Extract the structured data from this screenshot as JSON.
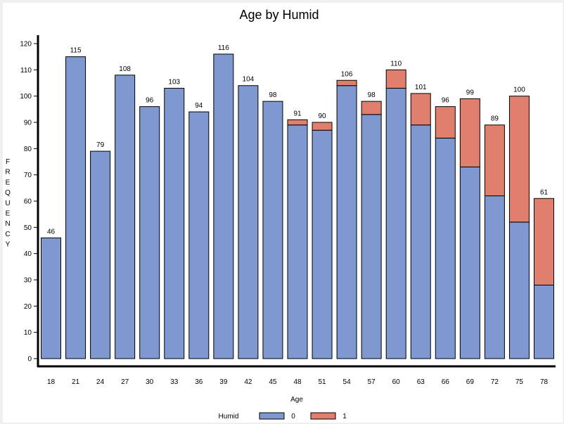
{
  "chart_data": {
    "type": "bar",
    "stacked": true,
    "title": "Age by Humid",
    "xlabel": "Age",
    "ylabel": "FREQUENCY",
    "ylim": [
      0,
      120
    ],
    "yticks": [
      0,
      10,
      20,
      30,
      40,
      50,
      60,
      70,
      80,
      90,
      100,
      110,
      120
    ],
    "categories": [
      "18",
      "21",
      "24",
      "27",
      "30",
      "33",
      "36",
      "39",
      "42",
      "45",
      "48",
      "51",
      "54",
      "57",
      "60",
      "63",
      "66",
      "69",
      "72",
      "75",
      "78"
    ],
    "legend": {
      "title": "Humid",
      "placement": "bottom"
    },
    "series": [
      {
        "name": "0",
        "color": "#7f98cf",
        "values": [
          46,
          115,
          79,
          108,
          96,
          103,
          94,
          116,
          104,
          98,
          89,
          87,
          104,
          93,
          103,
          89,
          84,
          73,
          62,
          52,
          28
        ]
      },
      {
        "name": "1",
        "color": "#e07f6e",
        "values": [
          0,
          0,
          0,
          0,
          0,
          0,
          0,
          0,
          0,
          0,
          2,
          3,
          2,
          5,
          7,
          12,
          12,
          26,
          27,
          48,
          33
        ]
      }
    ],
    "totals": [
      46,
      115,
      79,
      108,
      96,
      103,
      94,
      116,
      104,
      98,
      91,
      90,
      106,
      98,
      110,
      101,
      96,
      99,
      89,
      100,
      61
    ]
  }
}
